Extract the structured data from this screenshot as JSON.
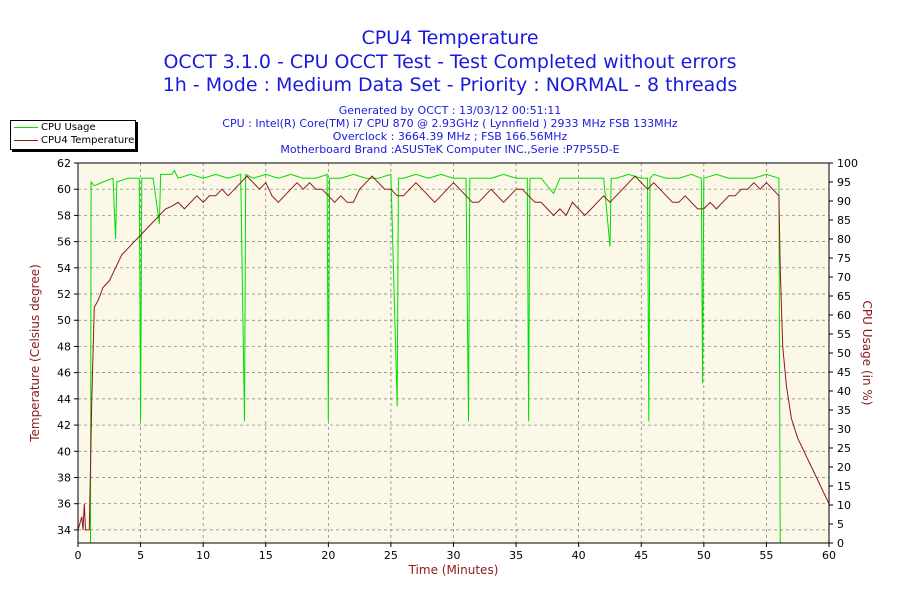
{
  "titles": {
    "line1": "CPU4 Temperature",
    "line2": "OCCT 3.1.0 - CPU OCCT Test - Test Completed without errors",
    "line3": "1h - Mode : Medium Data Set - Priority : NORMAL - 8 threads"
  },
  "info": {
    "line1": "Generated by OCCT : 13/03/12 00:51:11",
    "line2": "CPU : Intel(R) Core(TM) i7 CPU 870 @ 2.93GHz ( Lynnfield ) 2933 MHz FSB 133MHz",
    "line3": "Overclock : 3664.39 MHz ; FSB 166.56MHz",
    "line4": "Motherboard Brand :ASUSTeK Computer INC.,Serie :P7P55D-E"
  },
  "colors": {
    "usage": "#00dd00",
    "temperature": "#8b1a1a",
    "plot_background": "#fbf8e8",
    "grid": "#7a7a7a",
    "title": "#1a1adc"
  },
  "chart_data": {
    "type": "line",
    "xlabel": "Time (Minutes)",
    "ylabel_left": "Temperature (Celsius degree)",
    "ylabel_right": "CPU Usage (in %)",
    "xlim": [
      0,
      60
    ],
    "ylim_left": [
      33,
      62
    ],
    "ylim_right": [
      0,
      100
    ],
    "x_ticks": [
      0,
      5,
      10,
      15,
      20,
      25,
      30,
      35,
      40,
      45,
      50,
      55,
      60
    ],
    "y_left_ticks": [
      34,
      36,
      38,
      40,
      42,
      44,
      46,
      48,
      50,
      52,
      54,
      56,
      58,
      60,
      62
    ],
    "y_right_ticks": [
      0,
      5,
      10,
      15,
      20,
      25,
      30,
      35,
      40,
      45,
      50,
      55,
      60,
      65,
      70,
      75,
      80,
      85,
      90,
      95,
      100
    ],
    "grid": true,
    "legend_position": "top-left",
    "series": [
      {
        "name": "CPU Usage",
        "axis": "right",
        "points": [
          [
            0,
            0
          ],
          [
            1.0,
            0
          ],
          [
            1.05,
            95
          ],
          [
            1.3,
            94
          ],
          [
            2.0,
            95
          ],
          [
            2.8,
            96
          ],
          [
            3.0,
            80
          ],
          [
            3.1,
            95
          ],
          [
            4.0,
            96
          ],
          [
            4.9,
            96
          ],
          [
            5.0,
            32
          ],
          [
            5.1,
            96
          ],
          [
            6,
            96
          ],
          [
            6.5,
            84
          ],
          [
            6.6,
            97
          ],
          [
            7.5,
            97
          ],
          [
            7.7,
            98
          ],
          [
            8,
            96
          ],
          [
            9,
            97
          ],
          [
            10,
            96
          ],
          [
            11,
            97
          ],
          [
            12,
            96
          ],
          [
            13,
            97
          ],
          [
            13.3,
            32
          ],
          [
            13.4,
            97
          ],
          [
            14,
            96
          ],
          [
            15,
            97
          ],
          [
            16,
            96
          ],
          [
            17,
            97
          ],
          [
            18,
            96
          ],
          [
            19,
            96
          ],
          [
            19.9,
            97
          ],
          [
            20.0,
            32
          ],
          [
            20.1,
            96
          ],
          [
            21,
            96
          ],
          [
            22,
            97
          ],
          [
            23,
            96
          ],
          [
            24,
            96
          ],
          [
            25,
            97
          ],
          [
            25.5,
            36
          ],
          [
            25.6,
            96
          ],
          [
            26,
            96
          ],
          [
            27,
            97
          ],
          [
            28,
            96
          ],
          [
            29,
            97
          ],
          [
            30,
            96
          ],
          [
            31,
            96
          ],
          [
            31.2,
            32
          ],
          [
            31.3,
            96
          ],
          [
            32,
            96
          ],
          [
            33,
            96
          ],
          [
            34,
            97
          ],
          [
            35,
            96
          ],
          [
            35.9,
            96
          ],
          [
            36.0,
            32
          ],
          [
            36.1,
            96
          ],
          [
            37,
            96
          ],
          [
            38,
            92
          ],
          [
            38.5,
            96
          ],
          [
            39,
            96
          ],
          [
            40,
            96
          ],
          [
            41,
            96
          ],
          [
            42,
            96
          ],
          [
            42.5,
            78
          ],
          [
            42.6,
            96
          ],
          [
            43,
            96
          ],
          [
            44,
            97
          ],
          [
            45,
            96
          ],
          [
            45.5,
            96
          ],
          [
            45.6,
            32
          ],
          [
            45.7,
            96
          ],
          [
            46,
            97
          ],
          [
            47,
            96
          ],
          [
            48,
            96
          ],
          [
            49,
            97
          ],
          [
            49.8,
            96
          ],
          [
            49.9,
            42
          ],
          [
            50.0,
            96
          ],
          [
            51,
            97
          ],
          [
            52,
            96
          ],
          [
            53,
            96
          ],
          [
            54,
            96
          ],
          [
            55,
            97
          ],
          [
            56.0,
            96
          ],
          [
            56.1,
            0
          ],
          [
            60,
            0
          ]
        ]
      },
      {
        "name": "CPU4 Temperature",
        "axis": "left",
        "points": [
          [
            0,
            34
          ],
          [
            0.3,
            35
          ],
          [
            0.4,
            34
          ],
          [
            0.5,
            36
          ],
          [
            0.6,
            34
          ],
          [
            0.9,
            34
          ],
          [
            1.1,
            44
          ],
          [
            1.3,
            51
          ],
          [
            1.6,
            51.5
          ],
          [
            2.0,
            52.5
          ],
          [
            2.5,
            53
          ],
          [
            3.0,
            54
          ],
          [
            3.5,
            55
          ],
          [
            4.0,
            55.5
          ],
          [
            4.5,
            56
          ],
          [
            5.0,
            56.5
          ],
          [
            5.5,
            57
          ],
          [
            6.0,
            57.5
          ],
          [
            6.5,
            58
          ],
          [
            7.0,
            58.5
          ],
          [
            7.5,
            58.7
          ],
          [
            8.0,
            59
          ],
          [
            8.5,
            58.5
          ],
          [
            9.0,
            59
          ],
          [
            9.5,
            59.5
          ],
          [
            10.0,
            59
          ],
          [
            10.5,
            59.5
          ],
          [
            11,
            59.5
          ],
          [
            11.5,
            60
          ],
          [
            12,
            59.5
          ],
          [
            12.5,
            60
          ],
          [
            13,
            60.5
          ],
          [
            13.5,
            61
          ],
          [
            14,
            60.5
          ],
          [
            14.5,
            60
          ],
          [
            15,
            60.5
          ],
          [
            15.5,
            59.5
          ],
          [
            16,
            59
          ],
          [
            16.5,
            59.5
          ],
          [
            17,
            60
          ],
          [
            17.5,
            60.5
          ],
          [
            18,
            60
          ],
          [
            18.5,
            60.5
          ],
          [
            19,
            60
          ],
          [
            19.5,
            60
          ],
          [
            20,
            59.5
          ],
          [
            20.5,
            59
          ],
          [
            21,
            59.5
          ],
          [
            21.5,
            59
          ],
          [
            22,
            59
          ],
          [
            22.5,
            60
          ],
          [
            23,
            60.5
          ],
          [
            23.5,
            61
          ],
          [
            24,
            60.5
          ],
          [
            24.5,
            60
          ],
          [
            25,
            60
          ],
          [
            25.5,
            59.5
          ],
          [
            26,
            59.5
          ],
          [
            26.5,
            60
          ],
          [
            27,
            60.5
          ],
          [
            27.5,
            60
          ],
          [
            28,
            59.5
          ],
          [
            28.5,
            59
          ],
          [
            29,
            59.5
          ],
          [
            29.5,
            60
          ],
          [
            30,
            60.5
          ],
          [
            30.5,
            60
          ],
          [
            31,
            59.5
          ],
          [
            31.5,
            59
          ],
          [
            32,
            59
          ],
          [
            32.5,
            59.5
          ],
          [
            33,
            60
          ],
          [
            33.5,
            59.5
          ],
          [
            34,
            59
          ],
          [
            34.5,
            59.5
          ],
          [
            35,
            60
          ],
          [
            35.5,
            60
          ],
          [
            36,
            59.5
          ],
          [
            36.5,
            59
          ],
          [
            37,
            59
          ],
          [
            37.5,
            58.5
          ],
          [
            38,
            58
          ],
          [
            38.5,
            58.5
          ],
          [
            39,
            58
          ],
          [
            39.5,
            59
          ],
          [
            40,
            58.5
          ],
          [
            40.5,
            58
          ],
          [
            41,
            58.5
          ],
          [
            41.5,
            59
          ],
          [
            42,
            59.5
          ],
          [
            42.5,
            59
          ],
          [
            43,
            59.5
          ],
          [
            43.5,
            60
          ],
          [
            44,
            60.5
          ],
          [
            44.5,
            61
          ],
          [
            45,
            60.5
          ],
          [
            45.5,
            60
          ],
          [
            46,
            60.5
          ],
          [
            46.5,
            60
          ],
          [
            47,
            59.5
          ],
          [
            47.5,
            59
          ],
          [
            48,
            59
          ],
          [
            48.5,
            59.5
          ],
          [
            49,
            59
          ],
          [
            49.5,
            58.5
          ],
          [
            50,
            58.5
          ],
          [
            50.5,
            59
          ],
          [
            51,
            58.5
          ],
          [
            51.5,
            59
          ],
          [
            52,
            59.5
          ],
          [
            52.5,
            59.5
          ],
          [
            53,
            60
          ],
          [
            53.5,
            60
          ],
          [
            54,
            60.5
          ],
          [
            54.5,
            60
          ],
          [
            55,
            60.5
          ],
          [
            55.5,
            60
          ],
          [
            56.0,
            59.5
          ],
          [
            56.1,
            54
          ],
          [
            56.3,
            48
          ],
          [
            56.6,
            45
          ],
          [
            57.0,
            42.5
          ],
          [
            57.5,
            41
          ],
          [
            58.0,
            40
          ],
          [
            58.5,
            39
          ],
          [
            59.0,
            38
          ],
          [
            59.5,
            37
          ],
          [
            60,
            36
          ]
        ]
      }
    ]
  }
}
